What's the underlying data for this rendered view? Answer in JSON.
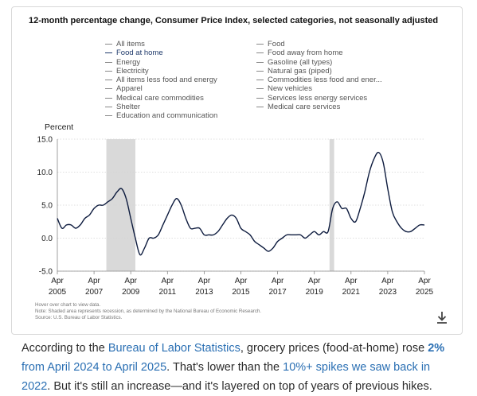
{
  "chart_data": {
    "type": "line",
    "title": "12-month percentage change, Consumer Price Index, selected categories, not seasonally adjusted",
    "ylabel": "Percent",
    "xlabel": "",
    "ylim": [
      -5,
      15
    ],
    "y_ticks": [
      "15.0",
      "10.0",
      "5.0",
      "0.0",
      "-5.0"
    ],
    "y_tick_values": [
      15,
      10,
      5,
      0,
      -5
    ],
    "x_ticks": [
      {
        "month": "Apr",
        "year": "2005"
      },
      {
        "month": "Apr",
        "year": "2007"
      },
      {
        "month": "Apr",
        "year": "2009"
      },
      {
        "month": "Apr",
        "year": "2011"
      },
      {
        "month": "Apr",
        "year": "2013"
      },
      {
        "month": "Apr",
        "year": "2015"
      },
      {
        "month": "Apr",
        "year": "2017"
      },
      {
        "month": "Apr",
        "year": "2019"
      },
      {
        "month": "Apr",
        "year": "2021"
      },
      {
        "month": "Apr",
        "year": "2023"
      },
      {
        "month": "Apr",
        "year": "2025"
      }
    ],
    "x_tick_values": [
      2005.25,
      2007.25,
      2009.25,
      2011.25,
      2013.25,
      2015.25,
      2017.25,
      2019.25,
      2021.25,
      2023.25,
      2025.25
    ],
    "xlim": [
      2005.25,
      2025.25
    ],
    "grid": true,
    "recessions": [
      [
        2007.92,
        2009.5
      ],
      [
        2020.08,
        2020.33
      ]
    ],
    "legend": {
      "left": [
        {
          "label": "All items",
          "active": false
        },
        {
          "label": "Food at home",
          "active": true
        },
        {
          "label": "Energy",
          "active": false
        },
        {
          "label": "Electricity",
          "active": false
        },
        {
          "label": "All items less food and energy",
          "active": false
        },
        {
          "label": "Apparel",
          "active": false
        },
        {
          "label": "Medical care commodities",
          "active": false
        },
        {
          "label": "Shelter",
          "active": false
        },
        {
          "label": "Education and communication",
          "active": false
        }
      ],
      "right": [
        {
          "label": "Food",
          "active": false
        },
        {
          "label": "Food away from home",
          "active": false
        },
        {
          "label": "Gasoline (all types)",
          "active": false
        },
        {
          "label": "Natural gas (piped)",
          "active": false
        },
        {
          "label": "Commodities less food and ener...",
          "active": false
        },
        {
          "label": "New vehicles",
          "active": false
        },
        {
          "label": "Services less energy services",
          "active": false
        },
        {
          "label": "Medical care services",
          "active": false
        }
      ]
    },
    "series": [
      {
        "name": "Food at home",
        "color": "#0d1b3e",
        "x": [
          2005.25,
          2005.5,
          2005.75,
          2006.0,
          2006.25,
          2006.5,
          2006.75,
          2007.0,
          2007.25,
          2007.5,
          2007.75,
          2008.0,
          2008.25,
          2008.5,
          2008.75,
          2009.0,
          2009.25,
          2009.5,
          2009.75,
          2010.0,
          2010.25,
          2010.5,
          2010.75,
          2011.0,
          2011.25,
          2011.5,
          2011.75,
          2012.0,
          2012.25,
          2012.5,
          2012.75,
          2013.0,
          2013.25,
          2013.5,
          2013.75,
          2014.0,
          2014.25,
          2014.5,
          2014.75,
          2015.0,
          2015.25,
          2015.5,
          2015.75,
          2016.0,
          2016.25,
          2016.5,
          2016.75,
          2017.0,
          2017.25,
          2017.5,
          2017.75,
          2018.0,
          2018.25,
          2018.5,
          2018.75,
          2019.0,
          2019.25,
          2019.5,
          2019.75,
          2020.0,
          2020.25,
          2020.5,
          2020.75,
          2021.0,
          2021.25,
          2021.5,
          2021.75,
          2022.0,
          2022.25,
          2022.5,
          2022.75,
          2023.0,
          2023.25,
          2023.5,
          2023.75,
          2024.0,
          2024.25,
          2024.5,
          2024.75,
          2025.0,
          2025.25
        ],
        "values": [
          3.0,
          1.5,
          2.0,
          2.0,
          1.5,
          2.0,
          3.0,
          3.5,
          4.5,
          5.0,
          5.0,
          5.5,
          6.0,
          7.0,
          7.5,
          6.0,
          3.0,
          0.0,
          -2.5,
          -1.5,
          0.0,
          0.0,
          0.5,
          2.0,
          3.5,
          5.0,
          6.0,
          5.0,
          3.0,
          1.5,
          1.5,
          1.5,
          0.5,
          0.5,
          0.5,
          1.0,
          2.0,
          3.0,
          3.5,
          3.0,
          1.5,
          1.0,
          0.5,
          -0.5,
          -1.0,
          -1.5,
          -2.0,
          -1.5,
          -0.5,
          0.0,
          0.5,
          0.5,
          0.5,
          0.5,
          0.0,
          0.5,
          1.0,
          0.5,
          1.0,
          1.0,
          4.5,
          5.5,
          4.5,
          4.5,
          3.0,
          2.5,
          4.5,
          7.0,
          10.0,
          12.0,
          13.0,
          11.5,
          7.5,
          4.0,
          2.5,
          1.5,
          1.0,
          1.0,
          1.5,
          2.0,
          2.0
        ]
      }
    ]
  },
  "notes": [
    "Hover over chart to view data.",
    "Note: Shaded area represents recession, as determined by the National Bureau of Economic Research.",
    "Source: U.S. Bureau of Labor Statistics."
  ],
  "download_icon": "download-icon",
  "article": {
    "p1": "According to the ",
    "link_bls": "Bureau of Labor Statistics",
    "p2": ", grocery prices (food-at-home) rose ",
    "link_pct": "2%",
    "link_from": " from April 2024 to April 2025",
    "p3": ". That's lower than the ",
    "link_spikes": "10%+ spikes we saw back in 2022",
    "p4": ". But it's still an increase—and it's layered on top of years of previous hikes."
  },
  "colors": {
    "line": "#0d1b3e",
    "recession": "#d9d9d9",
    "grid": "#d5d5d5",
    "link": "#2a6fb3"
  }
}
